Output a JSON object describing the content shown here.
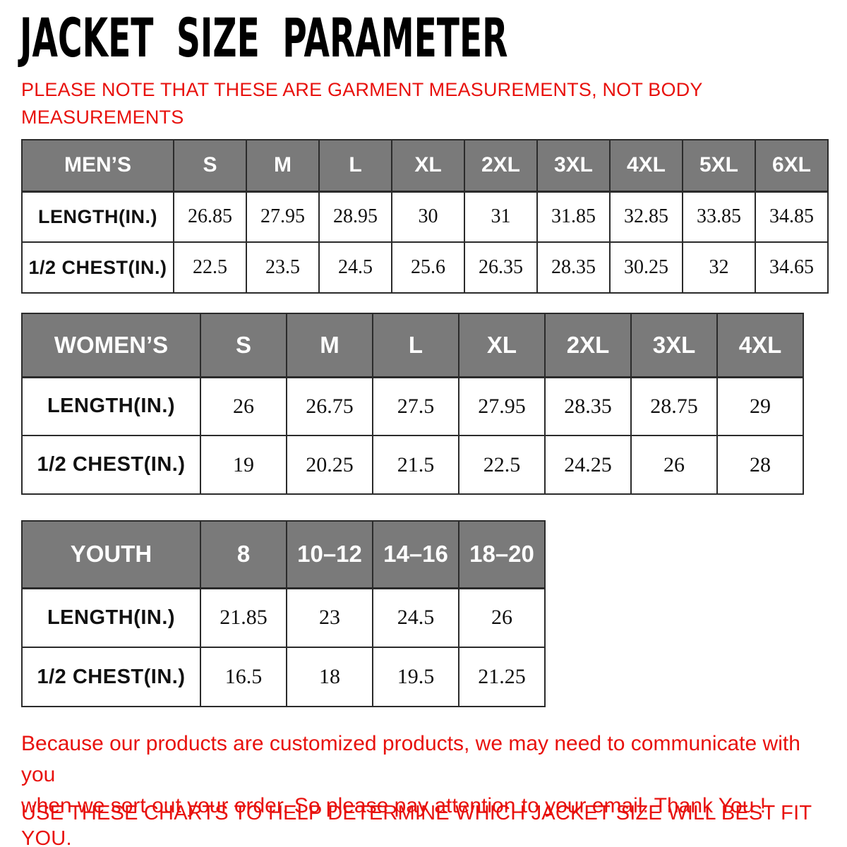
{
  "page": {
    "title": "JACKET SIZE PARAMETER",
    "colors": {
      "accent_red": "#e8110d",
      "table_header_gray": "#7a7a7a",
      "table_border": "#2b2b2b",
      "background": "#ffffff"
    }
  },
  "note": {
    "lines": [
      "PLEASE NOTE THAT THESE ARE GARMENT MEASUREMENTS, NOT BODY",
      "MEASUREMENTS"
    ]
  },
  "tables": [
    {
      "id": "mens",
      "header": [
        "MEN’S",
        "S",
        "M",
        "L",
        "XL",
        "2XL",
        "3XL",
        "4XL",
        "5XL",
        "6XL"
      ],
      "rows": [
        {
          "label": "LENGTH(IN.)",
          "values": [
            "26.85",
            "27.95",
            "28.95",
            "30",
            "31",
            "31.85",
            "32.85",
            "33.85",
            "34.85"
          ]
        },
        {
          "label": "1/2 CHEST(IN.)",
          "values": [
            "22.5",
            "23.5",
            "24.5",
            "25.6",
            "26.35",
            "28.35",
            "30.25",
            "32",
            "34.65"
          ]
        }
      ]
    },
    {
      "id": "womens",
      "header": [
        "WOMEN’S",
        "S",
        "M",
        "L",
        "XL",
        "2XL",
        "3XL",
        "4XL"
      ],
      "rows": [
        {
          "label": "LENGTH(IN.)",
          "values": [
            "26",
            "26.75",
            "27.5",
            "27.95",
            "28.35",
            "28.75",
            "29"
          ]
        },
        {
          "label": "1/2 CHEST(IN.)",
          "values": [
            "19",
            "20.25",
            "21.5",
            "22.5",
            "24.25",
            "26",
            "28"
          ]
        }
      ]
    },
    {
      "id": "youth",
      "header": [
        "YOUTH",
        "8",
        "10–12",
        "14–16",
        "18–20"
      ],
      "rows": [
        {
          "label": "LENGTH(IN.)",
          "values": [
            "21.85",
            "23",
            "24.5",
            "26"
          ]
        },
        {
          "label": "1/2 CHEST(IN.)",
          "values": [
            "16.5",
            "18",
            "19.5",
            "21.25"
          ]
        }
      ]
    }
  ],
  "footer": {
    "para_lines": [
      "Because our products are customized products, we may need to communicate with you",
      "when we sort out your order. So please pay attention to your email. Thank You !"
    ],
    "advice": "USE THESE CHARTS TO HELP DETERMINE WHICH JACKET SIZE WILL BEST FIT YOU."
  }
}
